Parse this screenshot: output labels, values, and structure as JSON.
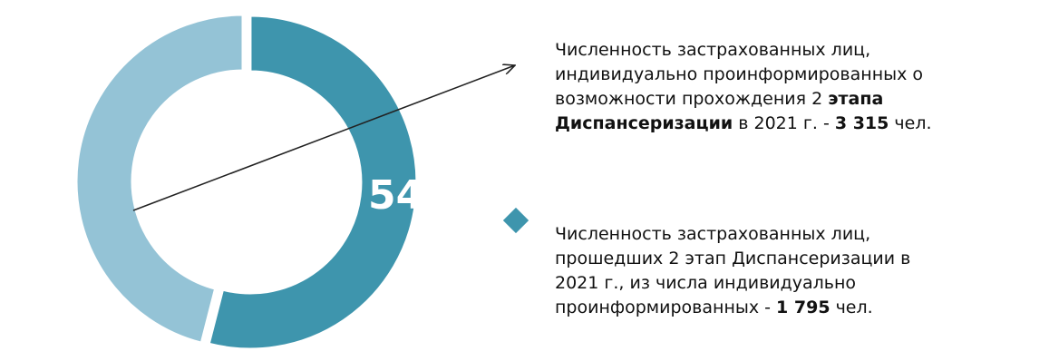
{
  "chart_data": {
    "type": "pie",
    "style": "donut",
    "slices": [
      {
        "share": 54,
        "label": "54%",
        "color": "#3e95ad"
      },
      {
        "share": 46,
        "label": "",
        "color": "#94c3d6"
      }
    ],
    "legend": [
      {
        "lines": [
          {
            "text": "Численность застрахованных лиц,"
          },
          {
            "text": "индивидуально проинформированных о"
          },
          {
            "pre": "возможности прохождения  2 ",
            "bold": "этапа"
          },
          {
            "bold": "Диспансеризации",
            "post": " в 2021  г. - ",
            "bold2": "3 315",
            "post2": " чел."
          }
        ]
      },
      {
        "marker_color": "#3e95ad",
        "lines": [
          {
            "text": "Численность застрахованных лиц,"
          },
          {
            "text": "прошедших 2 этап Диспансеризации в"
          },
          {
            "text": "2021  г., из числа индивидуально"
          },
          {
            "pre": "проинформированных  - ",
            "bold": "1 795",
            "post": " чел."
          }
        ]
      }
    ]
  }
}
